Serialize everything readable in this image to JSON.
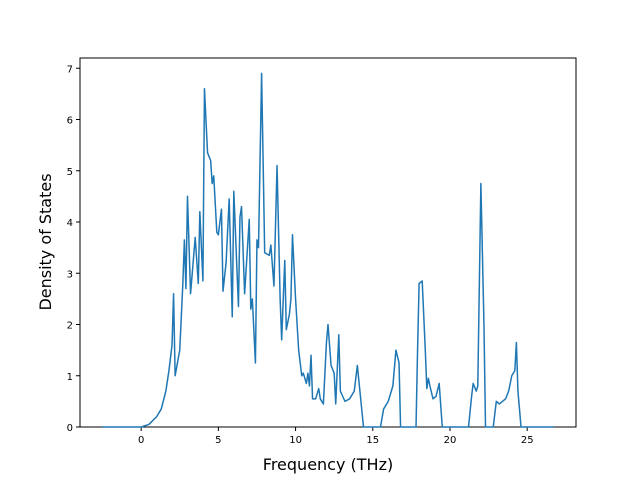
{
  "chart_data": {
    "type": "line",
    "xlabel": "Frequency (THz)",
    "ylabel": "Density of States",
    "x": [
      -2.5,
      0,
      0.5,
      1.0,
      1.3,
      1.6,
      1.8,
      2.0,
      2.1,
      2.2,
      2.5,
      2.7,
      2.8,
      2.9,
      3.0,
      3.2,
      3.5,
      3.7,
      3.8,
      4.0,
      4.1,
      4.3,
      4.5,
      4.6,
      4.7,
      4.9,
      5.0,
      5.2,
      5.3,
      5.5,
      5.7,
      5.9,
      6.0,
      6.3,
      6.4,
      6.5,
      6.7,
      7.0,
      7.1,
      7.2,
      7.4,
      7.5,
      7.6,
      7.8,
      8.0,
      8.3,
      8.4,
      8.6,
      8.8,
      9.0,
      9.1,
      9.3,
      9.4,
      9.6,
      9.7,
      9.8,
      10.0,
      10.2,
      10.4,
      10.5,
      10.7,
      10.8,
      10.9,
      11.0,
      11.1,
      11.3,
      11.5,
      11.6,
      11.8,
      12.0,
      12.1,
      12.3,
      12.5,
      12.6,
      12.8,
      12.9,
      13.2,
      13.5,
      13.8,
      14.0,
      14.2,
      14.4,
      15.5,
      15.7,
      16.0,
      16.3,
      16.5,
      16.7,
      16.8,
      17.8,
      17.9,
      18.0,
      18.2,
      18.4,
      18.5,
      18.6,
      18.7,
      18.9,
      19.1,
      19.3,
      19.5,
      21.2,
      21.4,
      21.5,
      21.7,
      21.8,
      22.0,
      22.2,
      22.3,
      22.8,
      23.0,
      23.2,
      23.6,
      23.8,
      24.0,
      24.2,
      24.3,
      24.4,
      24.6,
      26.7
    ],
    "values": [
      0,
      0,
      0.05,
      0.2,
      0.35,
      0.7,
      1.1,
      1.6,
      2.6,
      1.0,
      1.5,
      2.8,
      3.65,
      2.7,
      4.5,
      2.6,
      3.7,
      2.8,
      4.2,
      2.85,
      6.6,
      5.35,
      5.2,
      4.75,
      4.9,
      3.8,
      3.75,
      4.25,
      2.65,
      3.2,
      4.45,
      2.15,
      4.6,
      2.35,
      4.1,
      4.3,
      2.6,
      4.05,
      2.3,
      2.5,
      1.25,
      3.65,
      3.5,
      6.9,
      3.4,
      3.35,
      3.55,
      2.75,
      5.1,
      2.5,
      1.7,
      3.25,
      1.9,
      2.2,
      2.5,
      3.75,
      2.5,
      1.5,
      1.0,
      1.05,
      0.85,
      1.05,
      0.8,
      1.4,
      0.55,
      0.55,
      0.75,
      0.55,
      0.45,
      1.65,
      2.0,
      1.2,
      1.05,
      0.45,
      1.8,
      0.7,
      0.5,
      0.55,
      0.7,
      1.2,
      0.6,
      0,
      0,
      0.35,
      0.5,
      0.8,
      1.5,
      1.25,
      0,
      0,
      1.5,
      2.8,
      2.85,
      1.5,
      0.75,
      0.95,
      0.8,
      0.55,
      0.6,
      0.85,
      0,
      0,
      0.6,
      0.85,
      0.7,
      0.8,
      4.75,
      2.0,
      0,
      0,
      0.5,
      0.45,
      0.55,
      0.7,
      1.0,
      1.1,
      1.65,
      0.7,
      0,
      0
    ],
    "color": "#1f77b4",
    "xlim": [
      -3.96,
      28.16
    ],
    "xticks": [
      0,
      5,
      10,
      15,
      20,
      25
    ],
    "ylim": [
      0,
      7.2
    ],
    "yticks": [
      0,
      1,
      2,
      3,
      4,
      5,
      6,
      7
    ]
  }
}
